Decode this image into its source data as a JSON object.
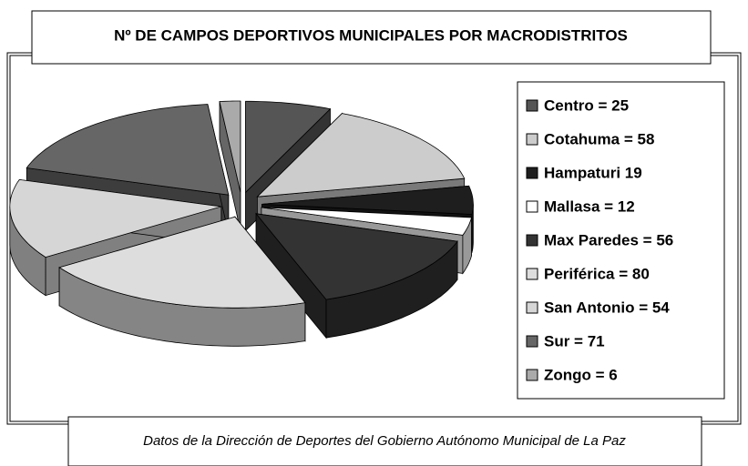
{
  "chart_data": {
    "type": "pie",
    "title": "Nº DE CAMPOS DEPORTIVOS MUNICIPALES POR MACRODISTRITOS",
    "footer": "Datos de la  Dirección de Deportes del Gobierno Autónomo Municipal de La Paz",
    "categories": [
      "Centro = 25",
      "Cotahuma = 58",
      "Hampaturi 19",
      "Mallasa = 12",
      "Max Paredes = 56",
      "Periférica = 80",
      "San Antonio = 54",
      "Sur =  71",
      "Zongo = 6"
    ],
    "values": [
      25,
      58,
      19,
      12,
      56,
      80,
      54,
      71,
      6
    ],
    "colors": [
      "#555555",
      "#cccccc",
      "#1e1e1e",
      "#ffffff",
      "#333333",
      "#dddddd",
      "#d6d6d6",
      "#666666",
      "#aaaaaa"
    ],
    "legend": "right"
  }
}
